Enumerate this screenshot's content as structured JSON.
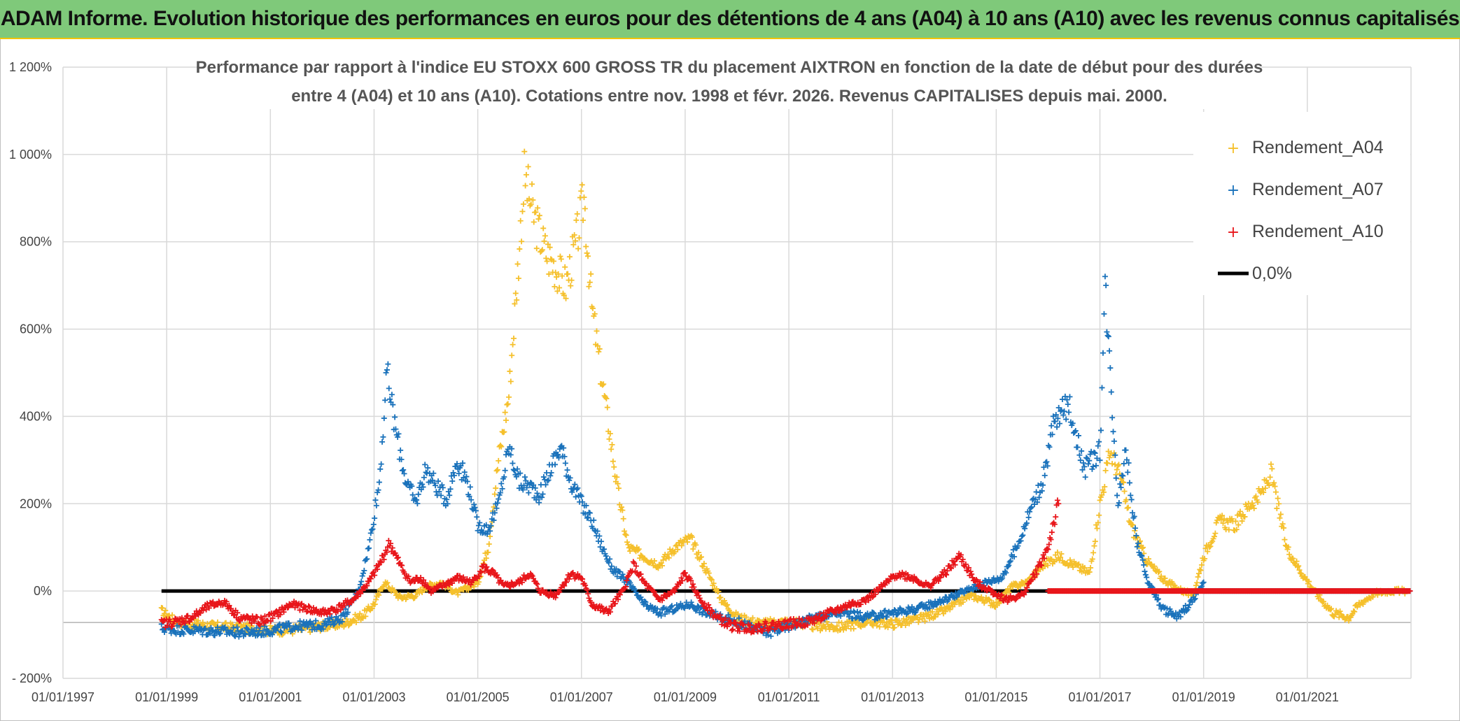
{
  "header": {
    "title": "ADAM Informe. Evolution historique des performances en euros pour des détentions de 4 ans (A04) à 10 ans (A10) avec les revenus connus capitalisés"
  },
  "chart_data": {
    "type": "scatter",
    "title_lines": [
      "Performance par rapport à l'indice EU STOXX 600 GROSS TR  du placement AIXTRON en fonction de la date de début pour des durées",
      "entre 4 (A04) et 10 ans (A10). Cotations entre nov. 1998 et févr. 2026. Revenus CAPITALISES depuis mai. 2000."
    ],
    "xlim": [
      1997.0,
      2023.0
    ],
    "ylim": [
      -200,
      1200
    ],
    "x_tick_labels": [
      "01/01/1997",
      "01/01/1999",
      "01/01/2001",
      "01/01/2003",
      "01/01/2005",
      "01/01/2007",
      "01/01/2009",
      "01/01/2011",
      "01/01/2013",
      "01/01/2015",
      "01/01/2017",
      "01/01/2019",
      "01/01/2021"
    ],
    "x_tick_values": [
      1997,
      1999,
      2001,
      2003,
      2005,
      2007,
      2009,
      2011,
      2013,
      2015,
      2017,
      2019,
      2021
    ],
    "y_tick_labels": [
      "- 200%",
      "0%",
      "200%",
      "400%",
      "600%",
      "800%",
      "1 000%",
      "1 200%"
    ],
    "y_tick_values": [
      -200,
      0,
      200,
      400,
      600,
      800,
      1000,
      1200
    ],
    "grid": true,
    "legend_position": "top-right",
    "colors": {
      "A04": "#f5c02c",
      "A07": "#1a72bb",
      "A10": "#e8161b",
      "zero": "#000000",
      "grid": "#d9d9d9"
    },
    "series": [
      {
        "name": "Rendement_A04",
        "marker": "plus",
        "color": "#f5c02c",
        "x": [
          1998.9,
          1999.2,
          1999.5,
          2000.0,
          2000.5,
          2001.0,
          2001.5,
          2002.0,
          2002.4,
          2002.8,
          2003.0,
          2003.2,
          2003.5,
          2003.8,
          2004.0,
          2004.3,
          2004.6,
          2005.0,
          2005.2,
          2005.4,
          2005.6,
          2005.75,
          2005.9,
          2006.1,
          2006.3,
          2006.5,
          2006.7,
          2006.9,
          2007.05,
          2007.2,
          2007.35,
          2007.5,
          2007.7,
          2007.9,
          2008.2,
          2008.5,
          2008.8,
          2009.1,
          2009.4,
          2009.7,
          2010.0,
          2010.5,
          2011.0,
          2011.5,
          2012.0,
          2012.5,
          2013.0,
          2013.5,
          2014.0,
          2014.5,
          2015.0,
          2015.3,
          2015.6,
          2015.9,
          2016.2,
          2016.5,
          2016.8,
          2017.0,
          2017.2,
          2017.4,
          2017.6,
          2017.9,
          2018.2,
          2018.5,
          2018.8,
          2019.0,
          2019.3,
          2019.6,
          2019.9,
          2020.1,
          2020.3,
          2020.6,
          2020.9,
          2021.2,
          2021.5,
          2021.8,
          2022.0,
          2022.3,
          2022.6,
          2022.9
        ],
        "y": [
          -45,
          -72,
          -75,
          -82,
          -85,
          -90,
          -88,
          -80,
          -75,
          -55,
          -30,
          20,
          -15,
          -10,
          10,
          20,
          -5,
          20,
          100,
          300,
          450,
          700,
          950,
          850,
          780,
          740,
          700,
          800,
          900,
          650,
          520,
          400,
          230,
          100,
          80,
          60,
          100,
          120,
          50,
          -20,
          -60,
          -75,
          -70,
          -80,
          -82,
          -70,
          -75,
          -65,
          -45,
          -10,
          -30,
          10,
          20,
          60,
          80,
          60,
          40,
          200,
          320,
          260,
          150,
          70,
          30,
          5,
          -10,
          80,
          160,
          150,
          200,
          220,
          270,
          100,
          40,
          -10,
          -50,
          -60,
          -30,
          -5,
          0,
          0
        ]
      },
      {
        "name": "Rendement_A07",
        "marker": "plus",
        "color": "#1a72bb",
        "x": [
          1998.9,
          1999.2,
          1999.6,
          2000.0,
          2000.5,
          2001.0,
          2001.5,
          2002.0,
          2002.4,
          2002.7,
          2002.9,
          2003.1,
          2003.25,
          2003.4,
          2003.6,
          2003.8,
          2004.0,
          2004.2,
          2004.4,
          2004.6,
          2004.8,
          2005.0,
          2005.2,
          2005.4,
          2005.6,
          2005.8,
          2006.0,
          2006.2,
          2006.4,
          2006.6,
          2006.8,
          2007.0,
          2007.2,
          2007.4,
          2007.6,
          2007.9,
          2008.2,
          2008.5,
          2008.8,
          2009.1,
          2009.4,
          2009.7,
          2010.0,
          2010.3,
          2010.6,
          2011.0,
          2011.5,
          2012.0,
          2012.5,
          2013.0,
          2013.5,
          2014.0,
          2014.4,
          2014.8,
          2015.1,
          2015.4,
          2015.7,
          2015.9,
          2016.1,
          2016.4,
          2016.7,
          2017.0,
          2017.1,
          2017.2,
          2017.35,
          2017.5,
          2017.7,
          2017.9,
          2018.2,
          2018.5,
          2018.8,
          2019.0
        ],
        "y": [
          -85,
          -88,
          -90,
          -92,
          -95,
          -90,
          -80,
          -78,
          -60,
          0,
          100,
          250,
          500,
          380,
          260,
          200,
          280,
          240,
          210,
          300,
          250,
          150,
          140,
          200,
          330,
          250,
          240,
          220,
          280,
          330,
          250,
          200,
          160,
          100,
          50,
          20,
          -30,
          -50,
          -40,
          -30,
          -50,
          -60,
          -70,
          -85,
          -95,
          -80,
          -60,
          -50,
          -60,
          -50,
          -40,
          -20,
          0,
          20,
          30,
          100,
          200,
          250,
          380,
          430,
          280,
          320,
          700,
          500,
          200,
          330,
          120,
          30,
          -40,
          -60,
          -20,
          20
        ]
      },
      {
        "name": "Rendement_A10",
        "marker": "plus",
        "color": "#e8161b",
        "x": [
          1998.9,
          1999.2,
          1999.5,
          1999.8,
          2000.1,
          2000.4,
          2000.8,
          2001.1,
          2001.4,
          2001.7,
          2002.0,
          2002.3,
          2002.6,
          2002.9,
          2003.1,
          2003.3,
          2003.5,
          2003.7,
          2003.9,
          2004.1,
          2004.3,
          2004.6,
          2004.9,
          2005.1,
          2005.3,
          2005.5,
          2005.8,
          2006.0,
          2006.2,
          2006.5,
          2006.8,
          2007.0,
          2007.2,
          2007.5,
          2007.8,
          2008.0,
          2008.2,
          2008.5,
          2008.8,
          2009.0,
          2009.3,
          2009.6,
          2009.9,
          2010.2,
          2010.6,
          2011.0,
          2011.4,
          2011.8,
          2012.2,
          2012.5,
          2012.8,
          2013.1,
          2013.4,
          2013.7,
          2014.0,
          2014.3,
          2014.6,
          2014.9,
          2015.2,
          2015.5,
          2015.8,
          2016.0,
          2016.2
        ],
        "y": [
          -75,
          -70,
          -60,
          -35,
          -25,
          -60,
          -70,
          -55,
          -30,
          -40,
          -50,
          -40,
          -20,
          20,
          60,
          110,
          60,
          20,
          30,
          0,
          10,
          30,
          20,
          55,
          40,
          10,
          20,
          40,
          0,
          -10,
          40,
          30,
          -30,
          -50,
          0,
          60,
          20,
          -20,
          0,
          40,
          -20,
          -60,
          -80,
          -85,
          -80,
          -75,
          -70,
          -50,
          -30,
          -20,
          10,
          40,
          30,
          10,
          40,
          80,
          20,
          0,
          -20,
          -10,
          50,
          100,
          200
        ]
      }
    ],
    "flat_segments": [
      {
        "series": "Rendement_A10",
        "x_start": 2016.0,
        "x_end": 2022.98,
        "y": 0
      },
      {
        "series": "Rendement_A07",
        "x_start": 2019.0,
        "x_end": 2022.98,
        "y": 0
      }
    ],
    "reference_line": {
      "name": "0,0%",
      "y": 0,
      "x_start": 1998.9,
      "x_end": 2016.5
    }
  }
}
